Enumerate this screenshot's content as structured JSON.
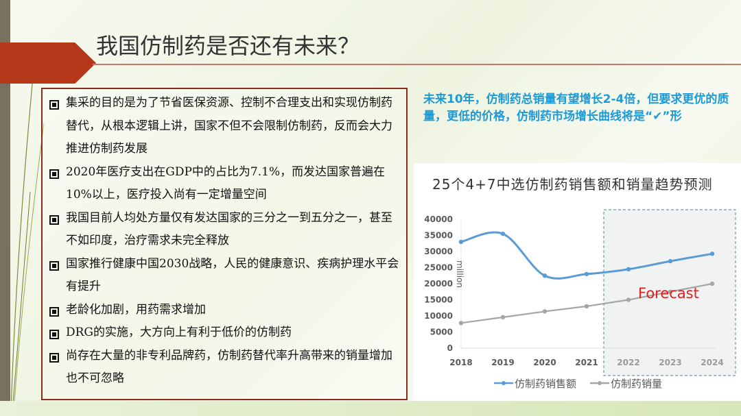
{
  "title": "我国仿制药是否还有未来？",
  "bullets": [
    "集采的目的是为了节省医保资源、控制不合理支出和实现仿制药替代，从根本逻辑上讲，国家不但不会限制仿制药，反而会大力推进仿制药发展",
    "2020年医疗支出在GDP中的占比为7.1%，而发达国家普遍在10%以上，医疗投入尚有一定增量空间",
    "我国目前人均处方量仅有发达国家的三分之一到五分之一，甚至不如印度，治疗需求未完全释放",
    "国家推行健康中国2030战略，人民的健康意识、疾病护理水平会有提升",
    "老龄化加剧，用药需求增加",
    "DRG的实施，大方向上有利于低价的仿制药",
    "尚存在大量的非专利品牌药，仿制药替代率升高带来的销量增加也不可忽略"
  ],
  "note": "未来10年，仿制药总销量有望增长2-4倍，但要求更优的质量，更低的价格，仿制药市场增长曲线将是“✔”形",
  "colors": {
    "accent_red": "#b5381a",
    "note_blue": "#1e9ad6",
    "series_sales": "#5b9bd5",
    "series_volume": "#a5a5a5",
    "forecast_red": "#e02020"
  },
  "chart_data": {
    "type": "line",
    "title": "25个4+7中选仿制药销售额和销量趋势预测",
    "ylabel": "million",
    "xlabel": "",
    "categories": [
      "2018",
      "2019",
      "2020",
      "2021",
      "2022",
      "2023",
      "2024"
    ],
    "yticks": [
      "0",
      "5000",
      "10000",
      "15000",
      "20000",
      "25000",
      "30000",
      "35000",
      "40000"
    ],
    "ylim": [
      0,
      40000
    ],
    "grid": false,
    "legend": "bottom",
    "annotation": "Forecast",
    "forecast_range": [
      "2022",
      "2024"
    ],
    "series": [
      {
        "name": "仿制药销售额",
        "values": [
          33000,
          35500,
          22500,
          23000,
          24500,
          27000,
          29300
        ],
        "color": "#5b9bd5",
        "smooth": true
      },
      {
        "name": "仿制药销量",
        "values": [
          7800,
          9600,
          11400,
          13000,
          15000,
          17500,
          20000
        ],
        "color": "#a5a5a5"
      }
    ]
  }
}
